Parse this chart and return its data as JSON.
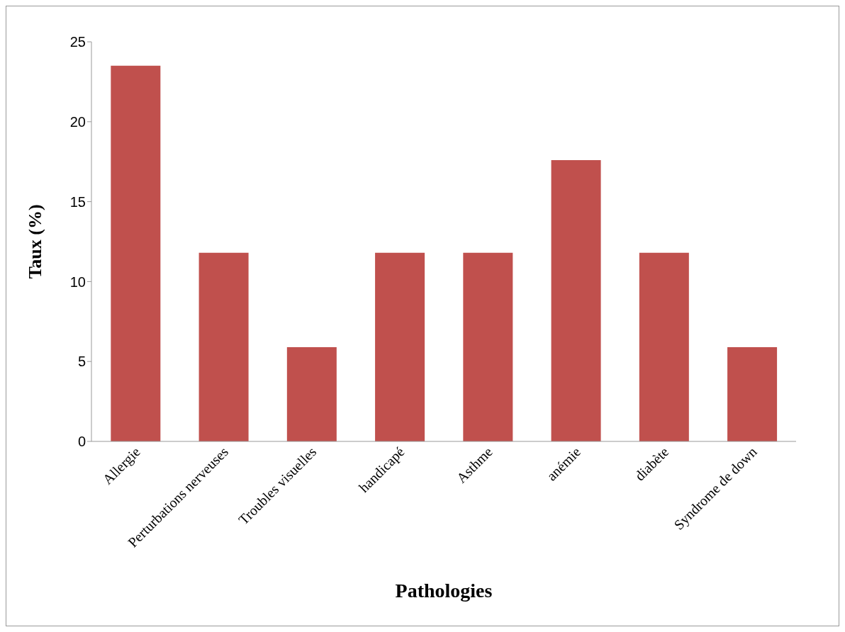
{
  "chart_data": {
    "type": "bar",
    "xlabel": "Pathologies",
    "ylabel": "Taux (%)",
    "categories": [
      "Allergie",
      "Perturbations nerveuses",
      "Troubles visuelles",
      "handicapé",
      "Asthme",
      "anémie",
      "diabète",
      "Syndrome de down"
    ],
    "values": [
      23.5,
      11.8,
      5.9,
      11.8,
      11.8,
      17.6,
      11.8,
      5.9
    ],
    "color": "#c0504d",
    "ylim": [
      0,
      25
    ],
    "yticks": [
      0,
      5,
      10,
      15,
      20,
      25
    ],
    "grid": false
  }
}
